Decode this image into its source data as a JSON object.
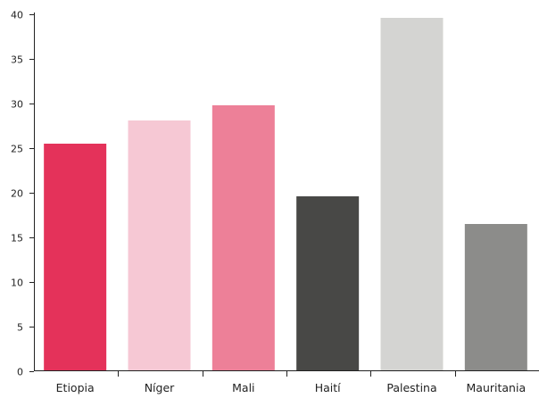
{
  "chart_data": {
    "type": "bar",
    "title": "",
    "xlabel": "",
    "ylabel": "",
    "ylim": [
      0,
      40
    ],
    "yticks": [
      0,
      5,
      10,
      15,
      20,
      25,
      30,
      35,
      40
    ],
    "grid": false,
    "legend": "none",
    "categories": [
      "Etiopia",
      "Níger",
      "Mali",
      "Haití",
      "Palestina",
      "Mauritania"
    ],
    "values": [
      25.5,
      28.1,
      29.8,
      19.6,
      39.6,
      16.5
    ],
    "colors": [
      "#e4325a",
      "#f6c8d4",
      "#ed8098",
      "#484846",
      "#d4d4d2",
      "#8c8c8a"
    ]
  }
}
